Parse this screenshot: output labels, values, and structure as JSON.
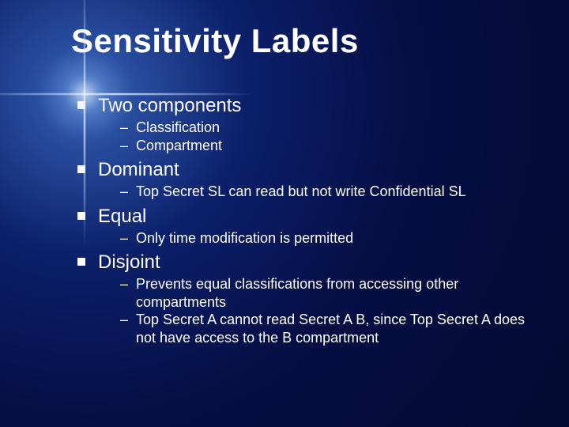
{
  "colors": {
    "text": "#ffffff",
    "bg_center": "#5a8ad0",
    "bg_mid": "#0b1f6a",
    "bg_outer": "#030a30"
  },
  "typography": {
    "title_fontsize": 42,
    "l1_fontsize": 24,
    "l2_fontsize": 18,
    "font_family": "Verdana"
  },
  "title": "Sensitivity Labels",
  "items": [
    {
      "label": "Two components",
      "subs": [
        "Classification",
        "Compartment"
      ]
    },
    {
      "label": "Dominant",
      "subs": [
        "Top Secret SL can read but not write Confidential SL"
      ]
    },
    {
      "label": "Equal",
      "subs": [
        "Only time modification is permitted"
      ]
    },
    {
      "label": "Disjoint",
      "subs": [
        "Prevents equal classifications from accessing other compartments",
        "Top Secret A cannot read Secret A B, since Top Secret A does not have access to the B compartment"
      ]
    }
  ]
}
